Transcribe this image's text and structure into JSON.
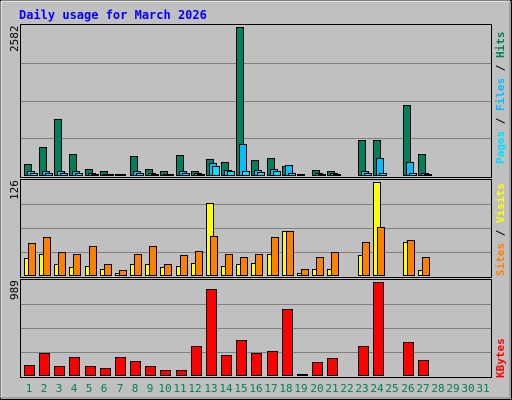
{
  "title": "Daily usage for March 2026",
  "colors": {
    "background": "#C0C0C0",
    "title": "#0000FF",
    "hits": "#00805C",
    "files": "#00C0FF",
    "pages": "#00E0FF",
    "visits": "#FFFF00",
    "sites": "#FF8000",
    "kbytes": "#FF0000",
    "weekday_label": "#00805C",
    "weekend_label": "#00805C",
    "day_label": "#00805C",
    "grid": "#808080"
  },
  "chart_data": [
    {
      "type": "bar",
      "panel": "hits-files-pages",
      "ymax_label": "2582",
      "ylim": [
        0,
        2582
      ],
      "categories": [
        "1",
        "2",
        "3",
        "4",
        "5",
        "6",
        "7",
        "8",
        "9",
        "10",
        "11",
        "12",
        "13",
        "14",
        "15",
        "16",
        "17",
        "18",
        "19",
        "20",
        "21",
        "22",
        "23",
        "24",
        "25",
        "26",
        "27",
        "28",
        "29",
        "30",
        "31"
      ],
      "legend": {
        "pages": "Pages",
        "files": "Files",
        "hits": "Hits",
        "sep": " / "
      },
      "series": [
        {
          "name": "Hits",
          "values": [
            210,
            510,
            980,
            380,
            120,
            80,
            40,
            340,
            120,
            80,
            360,
            90,
            290,
            240,
            2582,
            280,
            320,
            170,
            40,
            100,
            90,
            0,
            620,
            620,
            0,
            1230,
            380,
            0,
            0,
            0,
            0
          ]
        },
        {
          "name": "Files",
          "values": [
            90,
            80,
            90,
            80,
            60,
            40,
            30,
            90,
            60,
            40,
            80,
            50,
            220,
            110,
            560,
            100,
            120,
            190,
            20,
            60,
            50,
            0,
            90,
            310,
            0,
            250,
            60,
            0,
            0,
            0,
            0
          ]
        },
        {
          "name": "Pages",
          "values": [
            60,
            50,
            60,
            50,
            40,
            30,
            20,
            50,
            40,
            30,
            50,
            30,
            180,
            80,
            80,
            70,
            80,
            60,
            10,
            40,
            30,
            0,
            50,
            60,
            0,
            60,
            40,
            0,
            0,
            0,
            0
          ]
        }
      ]
    },
    {
      "type": "bar",
      "panel": "sites-visits",
      "ymax_label": "126",
      "ylim": [
        0,
        126
      ],
      "legend": {
        "sites": "Sites",
        "visits": "Visits",
        "sep": " / "
      },
      "series": [
        {
          "name": "Visits",
          "values": [
            24,
            30,
            16,
            12,
            14,
            10,
            4,
            16,
            16,
            12,
            14,
            18,
            98,
            14,
            16,
            18,
            30,
            60,
            4,
            10,
            10,
            0,
            28,
            126,
            0,
            46,
            8,
            0,
            0,
            0,
            0
          ]
        },
        {
          "name": "Sites",
          "values": [
            44,
            52,
            32,
            30,
            40,
            16,
            8,
            30,
            40,
            16,
            28,
            34,
            54,
            30,
            26,
            30,
            52,
            60,
            10,
            26,
            32,
            0,
            46,
            66,
            0,
            48,
            26,
            0,
            0,
            0,
            0
          ]
        }
      ]
    },
    {
      "type": "bar",
      "panel": "kbytes",
      "ymax_label": "989",
      "ylim": [
        0,
        989
      ],
      "legend": {
        "kbytes": "KBytes"
      },
      "series": [
        {
          "name": "KBytes",
          "values": [
            120,
            240,
            100,
            200,
            110,
            80,
            200,
            160,
            100,
            60,
            60,
            320,
            920,
            220,
            380,
            240,
            260,
            700,
            20,
            150,
            190,
            0,
            320,
            989,
            0,
            360,
            170,
            0,
            0,
            0,
            0
          ]
        }
      ]
    }
  ]
}
